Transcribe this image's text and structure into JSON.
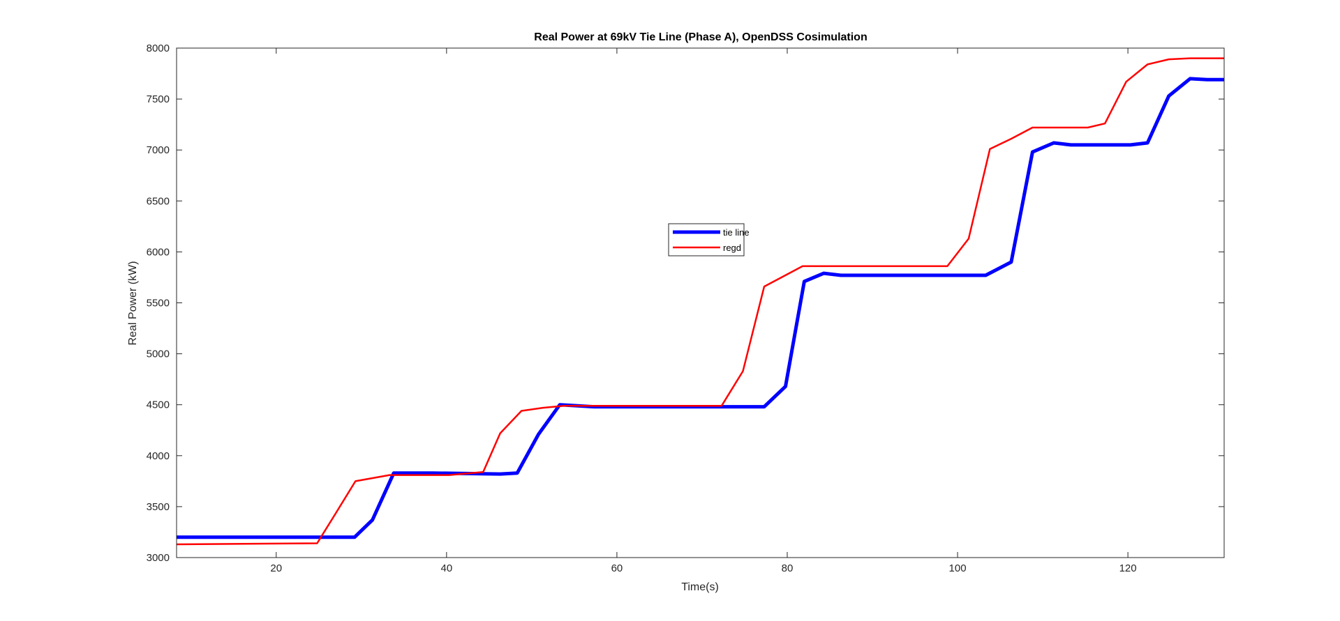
{
  "chart_data": {
    "type": "line",
    "title": "Real Power at 69kV Tie Line (Phase A), OpenDSS Cosimulation",
    "xlabel": "Time(s)",
    "ylabel": "Real Power (kW)",
    "xlim": [
      8.3,
      131.3
    ],
    "ylim": [
      3000,
      8000
    ],
    "xticks": [
      20,
      40,
      60,
      80,
      100,
      120
    ],
    "yticks": [
      3000,
      3500,
      4000,
      4500,
      5000,
      5500,
      6000,
      6500,
      7000,
      7500,
      8000
    ],
    "grid": false,
    "legend_position": "center",
    "series": [
      {
        "name": "tie line",
        "color": "#0000ff",
        "x": [
          8.3,
          29.2,
          31.3,
          33.8,
          38.3,
          46.3,
          48.3,
          50.8,
          53.3,
          57.3,
          72.3,
          77.3,
          79.8,
          82.0,
          84.3,
          86.3,
          96.3,
          103.3,
          106.3,
          108.8,
          111.3,
          113.3,
          118.3,
          120.3,
          122.3,
          124.8,
          127.3,
          129.3,
          131.3
        ],
        "values": [
          3200,
          3200,
          3370,
          3830,
          3830,
          3820,
          3830,
          4210,
          4500,
          4480,
          4480,
          4480,
          4680,
          5710,
          5790,
          5770,
          5770,
          5770,
          5900,
          6980,
          7070,
          7050,
          7050,
          7050,
          7070,
          7530,
          7700,
          7690,
          7690
        ]
      },
      {
        "name": "regd",
        "color": "#ff0000",
        "x": [
          8.3,
          24.8,
          26.8,
          29.3,
          33.3,
          40.3,
          44.3,
          46.3,
          48.8,
          51.3,
          53.8,
          65.3,
          72.3,
          74.8,
          77.3,
          81.8,
          89.3,
          98.8,
          101.3,
          103.8,
          106.3,
          108.8,
          115.3,
          117.3,
          119.8,
          122.3,
          124.8,
          127.3,
          131.3
        ],
        "values": [
          3130,
          3140,
          3410,
          3750,
          3810,
          3810,
          3840,
          4220,
          4440,
          4470,
          4490,
          4490,
          4490,
          4830,
          5660,
          5860,
          5860,
          5860,
          6130,
          7010,
          7110,
          7220,
          7220,
          7260,
          7670,
          7840,
          7890,
          7900,
          7900
        ]
      }
    ]
  }
}
